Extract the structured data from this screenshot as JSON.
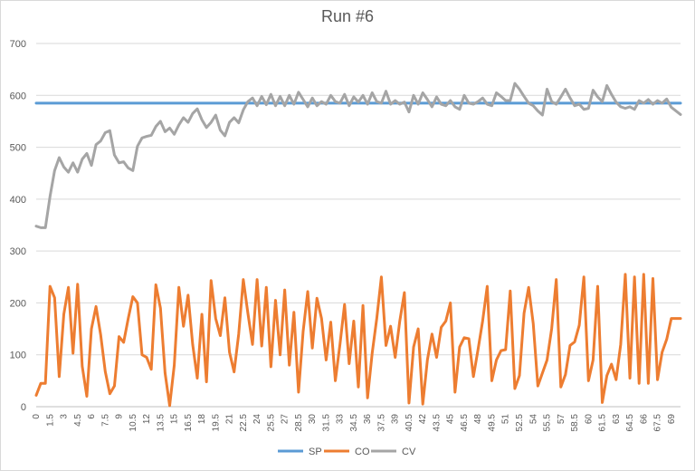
{
  "chart_data": {
    "type": "line",
    "title": "Run #6",
    "xlabel": "",
    "ylabel": "",
    "ylim": [
      0,
      700
    ],
    "yticks": [
      0,
      100,
      200,
      300,
      400,
      500,
      600,
      700
    ],
    "x_start": 0,
    "x_step": 0.5,
    "x_count": 141,
    "xtick_every": 3,
    "grid": "horizontal",
    "legend_position": "bottom",
    "series": [
      {
        "name": "SP",
        "color": "#5b9bd5",
        "values": [
          585,
          585,
          585,
          585,
          585,
          585,
          585,
          585,
          585,
          585,
          585,
          585,
          585,
          585,
          585,
          585,
          585,
          585,
          585,
          585,
          585,
          585,
          585,
          585,
          585,
          585,
          585,
          585,
          585,
          585,
          585,
          585,
          585,
          585,
          585,
          585,
          585,
          585,
          585,
          585,
          585,
          585,
          585,
          585,
          585,
          585,
          585,
          585,
          585,
          585,
          585,
          585,
          585,
          585,
          585,
          585,
          585,
          585,
          585,
          585,
          585,
          585,
          585,
          585,
          585,
          585,
          585,
          585,
          585,
          585,
          585,
          585,
          585,
          585,
          585,
          585,
          585,
          585,
          585,
          585,
          585,
          585,
          585,
          585,
          585,
          585,
          585,
          585,
          585,
          585,
          585,
          585,
          585,
          585,
          585,
          585,
          585,
          585,
          585,
          585,
          585,
          585,
          585,
          585,
          585,
          585,
          585,
          585,
          585,
          585,
          585,
          585,
          585,
          585,
          585,
          585,
          585,
          585,
          585,
          585,
          585,
          585,
          585,
          585,
          585,
          585,
          585,
          585,
          585,
          585,
          585,
          585,
          585,
          585,
          585,
          585,
          585,
          585,
          585,
          585,
          585
        ]
      },
      {
        "name": "CO",
        "color": "#ed7d31",
        "values": [
          22,
          45,
          45,
          232,
          210,
          58,
          178,
          230,
          103,
          236,
          78,
          20,
          150,
          193,
          139,
          68,
          25,
          40,
          135,
          124,
          170,
          212,
          200,
          100,
          95,
          72,
          235,
          190,
          65,
          2,
          80,
          230,
          155,
          215,
          120,
          55,
          178,
          48,
          243,
          170,
          137,
          210,
          105,
          67,
          140,
          245,
          180,
          120,
          245,
          117,
          230,
          77,
          205,
          100,
          225,
          80,
          182,
          28,
          145,
          222,
          113,
          209,
          170,
          90,
          163,
          50,
          120,
          197,
          83,
          165,
          38,
          195,
          17,
          103,
          170,
          250,
          118,
          155,
          95,
          165,
          220,
          7,
          115,
          150,
          5,
          90,
          140,
          95,
          153,
          165,
          200,
          28,
          115,
          133,
          131,
          58,
          110,
          165,
          232,
          50,
          90,
          108,
          110,
          223,
          35,
          60,
          180,
          230,
          160,
          40,
          65,
          90,
          150,
          245,
          38,
          62,
          118,
          125,
          157,
          250,
          50,
          90,
          232,
          8,
          60,
          82,
          52,
          120,
          255,
          55,
          250,
          45,
          255,
          45,
          247,
          52,
          105,
          130,
          170,
          170,
          170
        ]
      },
      {
        "name": "CV",
        "color": "#a5a5a5",
        "values": [
          348,
          345,
          345,
          405,
          455,
          480,
          462,
          452,
          470,
          452,
          477,
          488,
          465,
          505,
          512,
          528,
          532,
          485,
          470,
          472,
          460,
          455,
          502,
          518,
          521,
          523,
          540,
          550,
          530,
          537,
          525,
          543,
          557,
          548,
          565,
          574,
          553,
          538,
          548,
          562,
          533,
          522,
          548,
          557,
          547,
          572,
          588,
          595,
          580,
          598,
          582,
          602,
          580,
          598,
          580,
          600,
          583,
          606,
          592,
          578,
          595,
          580,
          588,
          583,
          600,
          588,
          585,
          602,
          580,
          597,
          587,
          600,
          583,
          605,
          588,
          585,
          608,
          583,
          590,
          583,
          587,
          568,
          600,
          583,
          605,
          592,
          578,
          597,
          583,
          580,
          590,
          578,
          573,
          600,
          585,
          583,
          588,
          595,
          583,
          580,
          605,
          598,
          590,
          590,
          623,
          612,
          598,
          585,
          580,
          570,
          562,
          612,
          588,
          583,
          597,
          612,
          595,
          580,
          583,
          573,
          575,
          610,
          597,
          588,
          619,
          602,
          587,
          578,
          575,
          578,
          573,
          590,
          585,
          592,
          583,
          590,
          585,
          593,
          577,
          570,
          563
        ]
      }
    ]
  }
}
